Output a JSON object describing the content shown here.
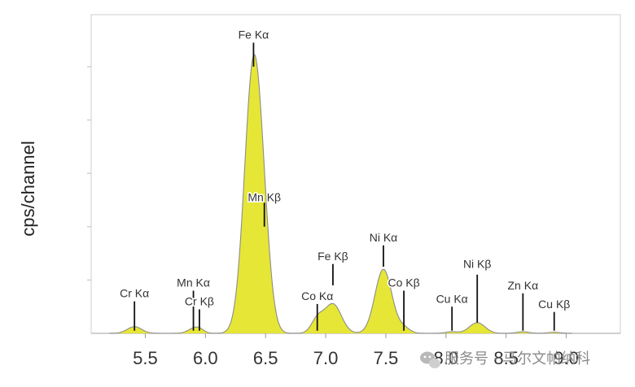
{
  "chart_data": {
    "type": "area",
    "xlabel": "",
    "ylabel": "cps/channel",
    "xlim": [
      5.05,
      9.45
    ],
    "ylim": [
      0,
      100
    ],
    "x_ticks": [
      5.5,
      6.0,
      6.5,
      7.0,
      7.5,
      8.0,
      8.5,
      9.0
    ],
    "x_tick_labels": [
      "5.5",
      "6.0",
      "6.5",
      "7.0",
      "7.5",
      "8.0",
      "8.5",
      "9.0"
    ],
    "y_tick_labels": [],
    "fill_color": "#e6e636",
    "line_color": "#8c8c8c",
    "peaks": [
      {
        "center": 5.41,
        "height": 2.5,
        "width": 0.06
      },
      {
        "center": 5.9,
        "height": 1.6,
        "width": 0.05
      },
      {
        "center": 5.95,
        "height": 1.2,
        "width": 0.04
      },
      {
        "center": 6.4,
        "height": 100,
        "width": 0.075
      },
      {
        "center": 6.49,
        "height": 13,
        "width": 0.06
      },
      {
        "center": 6.93,
        "height": 5,
        "width": 0.05
      },
      {
        "center": 7.06,
        "height": 11,
        "width": 0.07
      },
      {
        "center": 7.48,
        "height": 24,
        "width": 0.07
      },
      {
        "center": 7.65,
        "height": 2,
        "width": 0.05
      },
      {
        "center": 8.05,
        "height": 0.6,
        "width": 0.05
      },
      {
        "center": 8.26,
        "height": 4,
        "width": 0.065
      },
      {
        "center": 8.64,
        "height": 0.6,
        "width": 0.05
      },
      {
        "center": 8.9,
        "height": 0.4,
        "width": 0.05
      }
    ],
    "annotations": [
      {
        "label": "Cr Kα",
        "x": 5.41,
        "line_y": [
          1,
          12
        ],
        "text_y": 13.5
      },
      {
        "label": "Mn Kα",
        "x": 5.9,
        "line_y": [
          1,
          16
        ],
        "text_y": 17.5
      },
      {
        "label": "Cr Kβ",
        "x": 5.95,
        "line_y": [
          1,
          9
        ],
        "text_y": 10.5
      },
      {
        "label": "Fe Kα",
        "x": 6.4,
        "line_y": [
          100,
          109
        ],
        "text_y": 110.5
      },
      {
        "label": "Mn Kβ",
        "x": 6.49,
        "line_y": [
          40,
          49
        ],
        "text_y": 49.5
      },
      {
        "label": "Co Kα",
        "x": 6.93,
        "line_y": [
          1,
          11
        ],
        "text_y": 12.5
      },
      {
        "label": "Fe Kβ",
        "x": 7.06,
        "line_y": [
          18,
          26
        ],
        "text_y": 27.5
      },
      {
        "label": "Ni Kα",
        "x": 7.48,
        "line_y": [
          25,
          33
        ],
        "text_y": 34.5
      },
      {
        "label": "Co Kβ",
        "x": 7.65,
        "line_y": [
          1,
          16
        ],
        "text_y": 17.5
      },
      {
        "label": "Cu Kα",
        "x": 8.05,
        "line_y": [
          1,
          10
        ],
        "text_y": 11.5
      },
      {
        "label": "Ni Kβ",
        "x": 8.26,
        "line_y": [
          4,
          22
        ],
        "text_y": 24.5
      },
      {
        "label": "Zn Kα",
        "x": 8.64,
        "line_y": [
          1,
          15
        ],
        "text_y": 16.5
      },
      {
        "label": "Cu Kβ",
        "x": 8.9,
        "line_y": [
          1,
          8
        ],
        "text_y": 9.5
      }
    ]
  },
  "watermark": {
    "icon": "wechat-icon",
    "text": "服务号 · 马尔文帕纳科"
  }
}
